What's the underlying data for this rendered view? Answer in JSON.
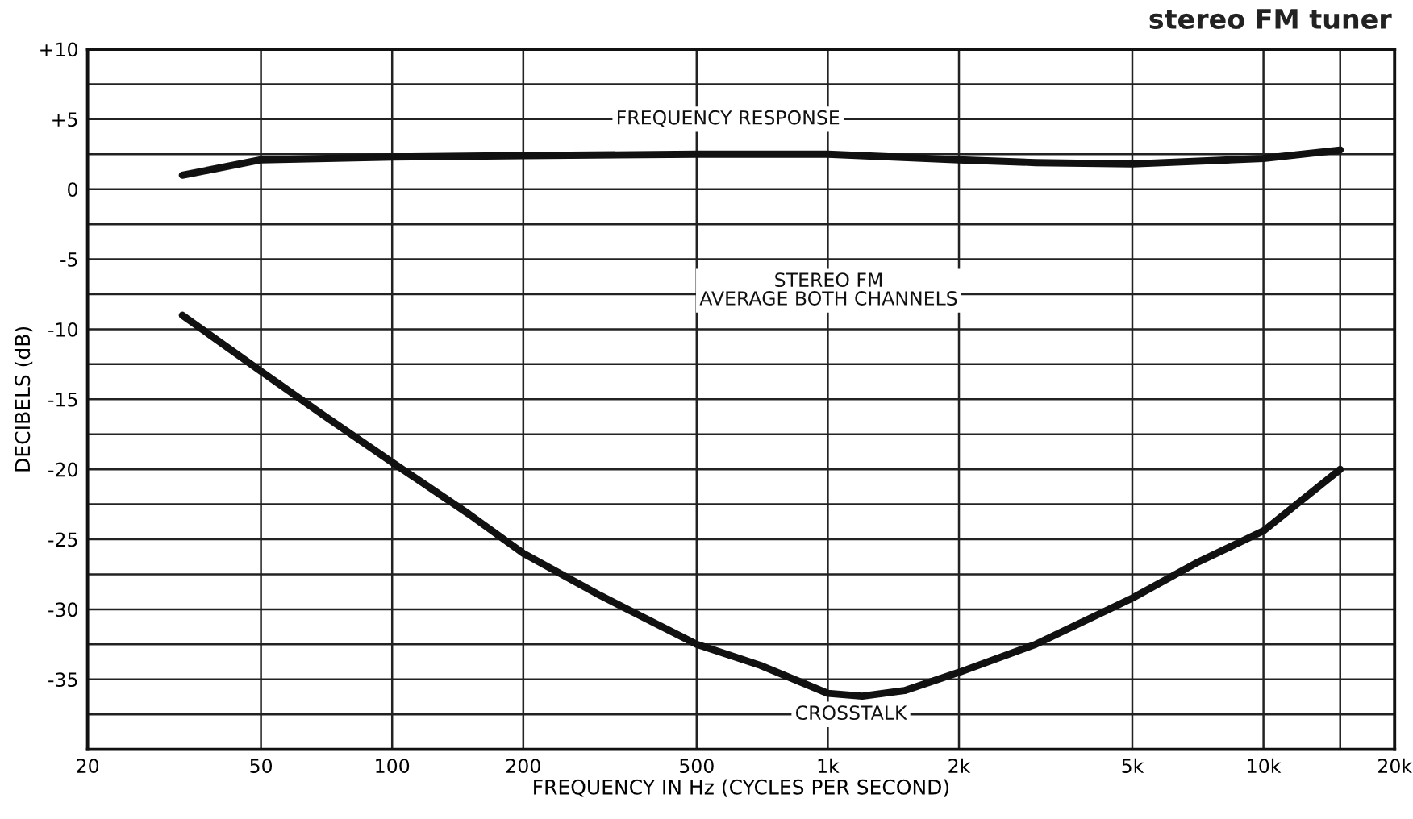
{
  "chart_data": {
    "type": "line",
    "title": "stereo FM tuner",
    "xlabel": "FREQUENCY IN Hz (CYCLES PER SECOND)",
    "ylabel": "DECIBELS (dB)",
    "annotations": [
      "STEREO FM\nAVERAGE BOTH CHANNELS"
    ],
    "series": [
      {
        "name": "FREQUENCY RESPONSE",
        "color": "#111111",
        "x": [
          33,
          50,
          100,
          200,
          500,
          1000,
          2000,
          3000,
          5000,
          10000,
          15000
        ],
        "values": [
          1.0,
          2.1,
          2.3,
          2.4,
          2.5,
          2.5,
          2.1,
          1.9,
          1.8,
          2.2,
          2.8
        ]
      },
      {
        "name": "CROSSTALK",
        "color": "#111111",
        "x": [
          33,
          50,
          70,
          100,
          150,
          200,
          300,
          500,
          700,
          1000,
          1200,
          1500,
          2000,
          3000,
          5000,
          7000,
          10000,
          15000
        ],
        "values": [
          -9,
          -13,
          -16.2,
          -19.5,
          -23.2,
          -26,
          -29,
          -32.5,
          -34,
          -36,
          -36.2,
          -35.8,
          -34.5,
          -32.5,
          -29.2,
          -26.7,
          -24.4,
          -20
        ]
      }
    ],
    "log": "x",
    "xlim": [
      20,
      20000
    ],
    "ylim": [
      -40,
      10
    ],
    "xticks": [
      20,
      50,
      100,
      200,
      500,
      {
        "value": 1000,
        "label": "1k"
      },
      {
        "value": 2000,
        "label": "2k"
      },
      {
        "value": 5000,
        "label": "5k"
      },
      {
        "value": 10000,
        "label": "10k"
      },
      {
        "value": 15000,
        "label": null
      },
      {
        "value": 20000,
        "label": "20k"
      }
    ],
    "yticks": [
      {
        "value": -40,
        "label": null
      },
      {
        "value": -37.5,
        "label": null
      },
      -35,
      {
        "value": -32.5,
        "label": null
      },
      -30,
      {
        "value": -27.5,
        "label": null
      },
      -25,
      {
        "value": -22.5,
        "label": null
      },
      -20,
      {
        "value": -17.5,
        "label": null
      },
      -15,
      {
        "value": -12.5,
        "label": null
      },
      -10,
      {
        "value": -7.5,
        "label": null
      },
      -5,
      {
        "value": -2.5,
        "label": null
      },
      0,
      {
        "value": 2.5,
        "label": null
      },
      {
        "value": 5,
        "label": "+5"
      },
      {
        "value": 7.5,
        "label": null
      },
      {
        "value": 10,
        "label": "+10"
      }
    ],
    "grid": true,
    "legend": false,
    "marker": "none",
    "line_style": "solid"
  }
}
